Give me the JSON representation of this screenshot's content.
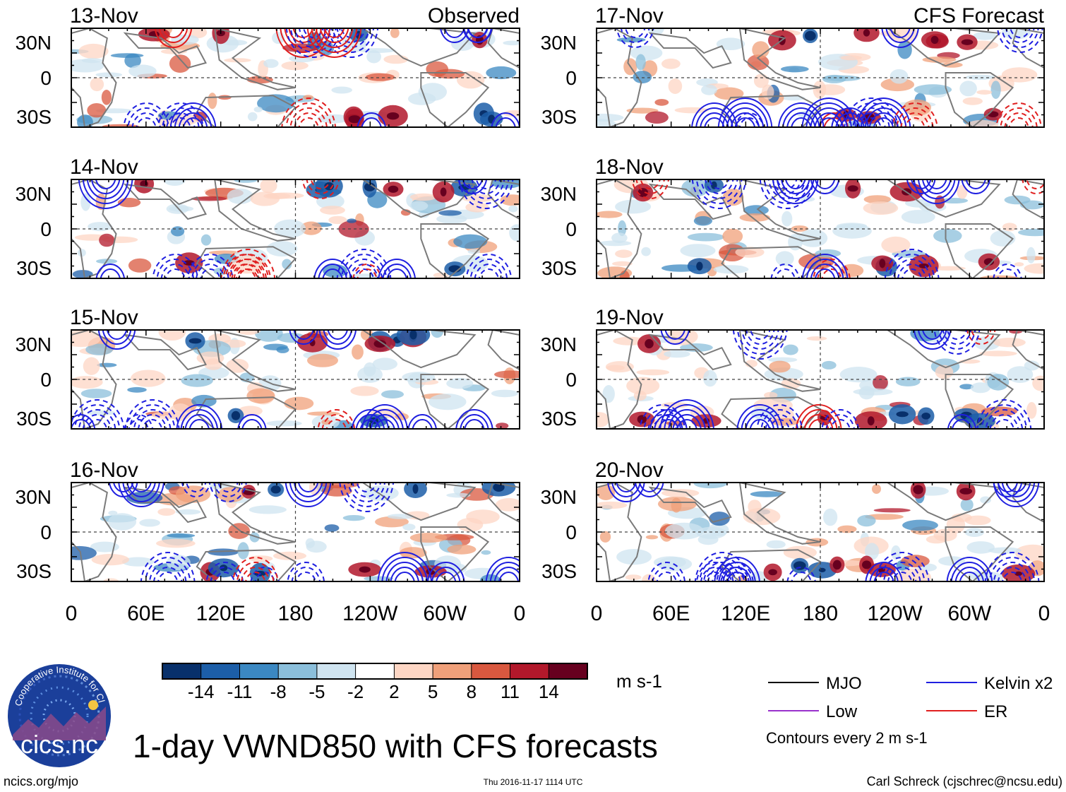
{
  "chart_data": {
    "type": "heatmap",
    "title": "1-day VWND850 with CFS forecasts",
    "variable": "VWND850",
    "units": "m s-1",
    "colorbar": {
      "ticks": [
        "-14",
        "-11",
        "-8",
        "-5",
        "-2",
        "2",
        "5",
        "8",
        "11",
        "14"
      ],
      "colors": [
        "#08306b",
        "#1c5ea8",
        "#3b88c2",
        "#8bbfdb",
        "#cfe4f0",
        "#ffffff",
        "#fdd6c4",
        "#f0a07a",
        "#d9583f",
        "#b2182b",
        "#67001f"
      ]
    },
    "lat_labels": [
      "30N",
      "0",
      "30S"
    ],
    "lon_labels": [
      "0",
      "60E",
      "120E",
      "180",
      "120W",
      "60W",
      "0"
    ],
    "panels": [
      {
        "date": "13-Nov",
        "source": "Observed",
        "column": "observed"
      },
      {
        "date": "14-Nov",
        "source": "",
        "column": "observed"
      },
      {
        "date": "15-Nov",
        "source": "",
        "column": "observed"
      },
      {
        "date": "16-Nov",
        "source": "",
        "column": "observed"
      },
      {
        "date": "17-Nov",
        "source": "CFS Forecast",
        "column": "forecast"
      },
      {
        "date": "18-Nov",
        "source": "",
        "column": "forecast"
      },
      {
        "date": "19-Nov",
        "source": "",
        "column": "forecast"
      },
      {
        "date": "20-Nov",
        "source": "",
        "column": "forecast"
      }
    ],
    "legend": [
      {
        "label": "MJO",
        "color": "#000000"
      },
      {
        "label": "Kelvin x2",
        "color": "#1f1fe0"
      },
      {
        "label": "Low",
        "color": "#9932cc"
      },
      {
        "label": "ER",
        "color": "#e01f1f"
      }
    ],
    "contour_note": "Contours every 2 m s-1"
  },
  "logo": {
    "name": "cics.nc",
    "arc_text": "Cooperative Institute for Climate and Satellites"
  },
  "footer": {
    "url": "ncics.org/mjo",
    "timestamp": "Thu 2016-11-17 1114 UTC",
    "credit": "Carl Schreck (cjschrec@ncsu.edu)"
  }
}
